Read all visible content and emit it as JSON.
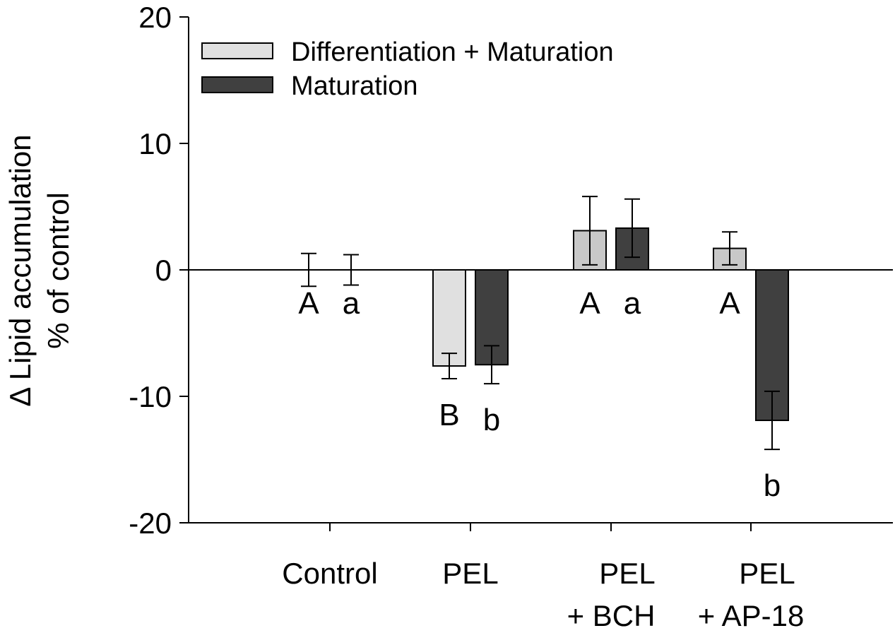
{
  "chart_data": {
    "type": "bar",
    "ylabel_line1": "Δ Lipid accumulation",
    "ylabel_line2": "% of control",
    "xlabel": "",
    "ylim": [
      -20,
      20
    ],
    "yticks": [
      -20,
      -10,
      0,
      10,
      20
    ],
    "categories": [
      {
        "line1": "Control",
        "line2": ""
      },
      {
        "line1": "PEL",
        "line2": ""
      },
      {
        "line1": "PEL",
        "line2": "+ BCH"
      },
      {
        "line1": "PEL",
        "line2": "+ AP-18"
      }
    ],
    "series": [
      {
        "name": "Differentiation  + Maturation",
        "color": "#e0e0e0",
        "color_alt": "#c8c8c8",
        "values": [
          0,
          -7.6,
          3.1,
          1.7
        ],
        "err_low": [
          1.3,
          1.0,
          2.7,
          1.3
        ],
        "err_high": [
          1.3,
          1.0,
          2.7,
          1.3
        ],
        "sig": [
          "A",
          "B",
          "A",
          "A"
        ]
      },
      {
        "name": "Maturation",
        "color": "#404040",
        "values": [
          0,
          -7.5,
          3.3,
          -11.9
        ],
        "err_low": [
          1.2,
          1.5,
          2.3,
          2.3
        ],
        "err_high": [
          1.2,
          1.5,
          2.3,
          2.3
        ],
        "sig": [
          "a",
          "b",
          "a",
          "b"
        ]
      }
    ]
  }
}
